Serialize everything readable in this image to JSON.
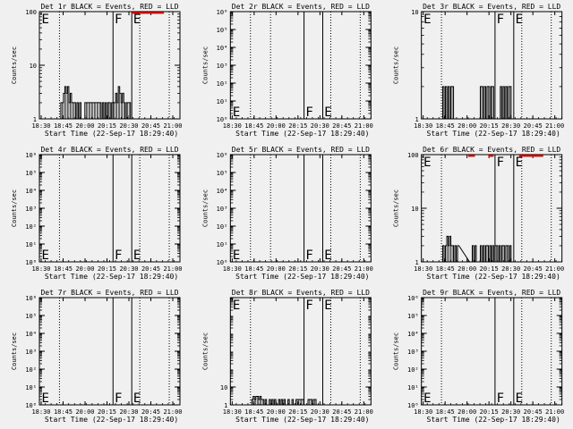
{
  "chart_data": [
    {
      "type": "line",
      "title": "Det 1r BLACK = Events, RED = LLD",
      "xlabel": "Start Time (22-Sep-17 18:29:40)",
      "ylabel": "Counts/sec",
      "x_ticks": [
        "18:30",
        "18:45",
        "20:00",
        "20:15",
        "20:30",
        "20:45",
        "21:00"
      ],
      "xlim": [
        0,
        105
      ],
      "yscale": "log",
      "ylim": [
        1,
        100
      ],
      "y_ticks": [
        "1",
        "10",
        "100"
      ],
      "dotted_lines_x": [
        15,
        75,
        97
      ],
      "solid_lines_x": [
        55,
        69
      ],
      "markers": [
        {
          "label": "E",
          "x": 1,
          "pos": "top"
        },
        {
          "label": "F",
          "x": 55.5,
          "pos": "top"
        },
        {
          "label": "E",
          "x": 69.5,
          "pos": "top"
        }
      ],
      "series": [
        {
          "name": "Events",
          "color": "#000000",
          "x": [
            15,
            16,
            17,
            18,
            19,
            20,
            21,
            22,
            23,
            24,
            25,
            26,
            27,
            28,
            29,
            30,
            31,
            32,
            33,
            34,
            35,
            36,
            37,
            38,
            39,
            40,
            41,
            42,
            43,
            44,
            45,
            46,
            47,
            48,
            49,
            50,
            51,
            52,
            53,
            54,
            55,
            56,
            57,
            58,
            59,
            60,
            61,
            62,
            63,
            64,
            65,
            66,
            67,
            68
          ],
          "y": [
            1,
            2,
            2,
            3,
            4,
            3,
            4,
            2,
            3,
            2,
            2,
            2,
            1,
            2,
            1,
            2,
            1,
            1,
            1,
            2,
            2,
            2,
            2,
            2,
            2,
            2,
            2,
            2,
            2,
            2,
            2,
            1,
            2,
            1,
            2,
            1,
            2,
            2,
            1,
            2,
            2,
            2,
            3,
            2,
            4,
            3,
            2,
            3,
            2,
            1,
            2,
            2,
            2,
            1
          ]
        },
        {
          "name": "LLD",
          "color": "#ff0000",
          "x": [
            69,
            70,
            71,
            72,
            73,
            74,
            75,
            76,
            77,
            78,
            79,
            80,
            81,
            82,
            83,
            84,
            85,
            86,
            87,
            88,
            89,
            90,
            91,
            92
          ],
          "y": [
            100,
            100,
            100,
            100,
            100,
            100,
            100,
            100,
            100,
            100,
            100,
            100,
            100,
            100,
            100,
            100,
            100,
            100,
            100,
            100,
            100,
            100,
            100,
            100
          ]
        }
      ]
    },
    {
      "type": "line",
      "title": "Det 2r BLACK = Events, RED = LLD",
      "xlabel": "Start Time (22-Sep-17 18:29:40)",
      "ylabel": "Counts/sec",
      "x_ticks": [
        "18:30",
        "18:45",
        "20:00",
        "20:15",
        "20:30",
        "20:45",
        "21:00"
      ],
      "xlim": [
        0,
        105
      ],
      "yscale": "log",
      "ylim": [
        1,
        1000000
      ],
      "y_ticks": [
        "10⁰",
        "10¹",
        "10²",
        "10³",
        "10⁴",
        "10⁵",
        "10⁶"
      ],
      "dotted_lines_x": [
        15,
        30,
        75,
        97
      ],
      "solid_lines_x": [
        55,
        69
      ],
      "markers": [
        {
          "label": "E",
          "x": 1,
          "pos": "bottom"
        },
        {
          "label": "F",
          "x": 55.5,
          "pos": "bottom"
        },
        {
          "label": "E",
          "x": 69.5,
          "pos": "bottom"
        }
      ],
      "series": []
    },
    {
      "type": "line",
      "title": "Det 3r BLACK = Events, RED = LLD",
      "xlabel": "Start Time (22-Sep-17 18:29:40)",
      "ylabel": "Counts/sec",
      "x_ticks": [
        "18:30",
        "18:45",
        "20:00",
        "20:15",
        "20:30",
        "20:45",
        "21:00"
      ],
      "xlim": [
        0,
        105
      ],
      "yscale": "log",
      "ylim": [
        1,
        10
      ],
      "y_ticks": [
        "1",
        "10"
      ],
      "dotted_lines_x": [
        15,
        75,
        97
      ],
      "solid_lines_x": [
        55,
        69
      ],
      "markers": [
        {
          "label": "E",
          "x": 1,
          "pos": "top"
        },
        {
          "label": "F",
          "x": 55.5,
          "pos": "top"
        },
        {
          "label": "E",
          "x": 69.5,
          "pos": "top"
        }
      ],
      "series": [
        {
          "name": "Events",
          "color": "#000000",
          "x": [
            15,
            16,
            17,
            18,
            19,
            20,
            21,
            22,
            23,
            24,
            43,
            44,
            45,
            46,
            47,
            48,
            49,
            50,
            51,
            52,
            53,
            54,
            58,
            59,
            60,
            61,
            62,
            63,
            64,
            65,
            66,
            67,
            68
          ],
          "y": [
            1,
            2,
            1,
            2,
            1,
            2,
            1,
            2,
            2,
            1,
            1,
            2,
            2,
            1,
            2,
            1,
            2,
            2,
            1,
            2,
            2,
            1,
            1,
            2,
            1,
            2,
            1,
            2,
            1,
            2,
            2,
            1,
            1
          ]
        }
      ]
    },
    {
      "type": "line",
      "title": "Det 4r BLACK = Events, RED = LLD",
      "xlabel": "Start Time (22-Sep-17 18:29:40)",
      "ylabel": "Counts/sec",
      "x_ticks": [
        "18:30",
        "18:45",
        "20:00",
        "20:15",
        "20:30",
        "20:45",
        "21:00"
      ],
      "xlim": [
        0,
        105
      ],
      "yscale": "log",
      "ylim": [
        1,
        1000000
      ],
      "y_ticks": [
        "10⁰",
        "10¹",
        "10²",
        "10³",
        "10⁴",
        "10⁵",
        "10⁶"
      ],
      "dotted_lines_x": [
        15,
        75,
        97
      ],
      "solid_lines_x": [
        55,
        69
      ],
      "markers": [
        {
          "label": "E",
          "x": 1,
          "pos": "bottom"
        },
        {
          "label": "F",
          "x": 55.5,
          "pos": "bottom"
        },
        {
          "label": "E",
          "x": 69.5,
          "pos": "bottom"
        }
      ],
      "series": []
    },
    {
      "type": "line",
      "title": "Det 5r BLACK = Events, RED = LLD",
      "xlabel": "Start Time (22-Sep-17 18:29:40)",
      "ylabel": "Counts/sec",
      "x_ticks": [
        "18:30",
        "18:45",
        "20:00",
        "20:15",
        "20:30",
        "20:45",
        "21:00"
      ],
      "xlim": [
        0,
        105
      ],
      "yscale": "log",
      "ylim": [
        1,
        1000000
      ],
      "y_ticks": [
        "10⁰",
        "10¹",
        "10²",
        "10³",
        "10⁴",
        "10⁵",
        "10⁶"
      ],
      "dotted_lines_x": [
        15,
        30,
        75,
        97
      ],
      "solid_lines_x": [
        55,
        69
      ],
      "markers": [
        {
          "label": "E",
          "x": 1,
          "pos": "bottom"
        },
        {
          "label": "F",
          "x": 55.5,
          "pos": "bottom"
        },
        {
          "label": "E",
          "x": 69.5,
          "pos": "bottom"
        }
      ],
      "series": []
    },
    {
      "type": "line",
      "title": "Det 6r BLACK = Events, RED = LLD",
      "xlabel": "Start Time (22-Sep-17 18:29:40)",
      "ylabel": "Counts/sec",
      "x_ticks": [
        "18:30",
        "18:45",
        "20:00",
        "20:15",
        "20:30",
        "20:45",
        "21:00"
      ],
      "xlim": [
        0,
        105
      ],
      "yscale": "log",
      "ylim": [
        1,
        100
      ],
      "y_ticks": [
        "1",
        "10",
        "100"
      ],
      "dotted_lines_x": [
        15,
        75,
        97
      ],
      "solid_lines_x": [
        55,
        69
      ],
      "markers": [
        {
          "label": "E",
          "x": 1,
          "pos": "top"
        },
        {
          "label": "F",
          "x": 55.5,
          "pos": "top"
        },
        {
          "label": "E",
          "x": 69.5,
          "pos": "top"
        }
      ],
      "series": [
        {
          "name": "Events",
          "color": "#000000",
          "x": [
            15,
            16,
            17,
            18,
            19,
            20,
            21,
            22,
            23,
            24,
            25,
            26,
            27,
            36,
            37,
            38,
            39,
            40,
            41,
            42,
            43,
            44,
            45,
            46,
            47,
            48,
            49,
            50,
            51,
            52,
            53,
            54,
            55,
            56,
            57,
            58,
            59,
            60,
            61,
            62,
            63,
            64,
            65,
            66,
            67,
            68
          ],
          "y": [
            1,
            2,
            1,
            2,
            3,
            2,
            3,
            2,
            2,
            1,
            2,
            1,
            2,
            1,
            1,
            2,
            1,
            2,
            1,
            1,
            1,
            2,
            1,
            2,
            1,
            2,
            2,
            1,
            2,
            1,
            2,
            1,
            2,
            2,
            1,
            2,
            1,
            2,
            2,
            1,
            2,
            2,
            1,
            2,
            1,
            1
          ]
        },
        {
          "name": "LLD",
          "color": "#ff0000",
          "x": [
            35,
            36,
            37,
            38,
            39,
            50,
            51,
            52,
            53,
            73,
            74,
            75,
            76,
            77,
            78,
            79,
            80,
            81,
            82,
            83,
            84,
            85,
            86,
            87,
            88,
            89,
            90
          ],
          "y": [
            100,
            100,
            100,
            100,
            100,
            100,
            100,
            100,
            100,
            100,
            100,
            100,
            100,
            100,
            100,
            100,
            100,
            100,
            100,
            100,
            100,
            100,
            100,
            100,
            100,
            100,
            100
          ]
        }
      ]
    },
    {
      "type": "line",
      "title": "Det 7r BLACK = Events, RED = LLD",
      "xlabel": "Start Time (22-Sep-17 18:29:40)",
      "ylabel": "Counts/sec",
      "x_ticks": [
        "18:30",
        "18:45",
        "20:00",
        "20:15",
        "20:30",
        "20:45",
        "21:00"
      ],
      "xlim": [
        0,
        105
      ],
      "yscale": "log",
      "ylim": [
        1,
        1000000
      ],
      "y_ticks": [
        "10⁰",
        "10¹",
        "10²",
        "10³",
        "10⁴",
        "10⁵",
        "10⁶"
      ],
      "dotted_lines_x": [
        15,
        75,
        97
      ],
      "solid_lines_x": [
        55,
        69
      ],
      "markers": [
        {
          "label": "E",
          "x": 1,
          "pos": "bottom"
        },
        {
          "label": "F",
          "x": 55.5,
          "pos": "bottom"
        },
        {
          "label": "E",
          "x": 69.5,
          "pos": "bottom"
        }
      ],
      "series": []
    },
    {
      "type": "line",
      "title": "Det 8r BLACK = Events, RED = LLD",
      "xlabel": "Start Time (22-Sep-17 18:29:40)",
      "ylabel": "Counts/sec",
      "x_ticks": [
        "18:30",
        "18:45",
        "20:00",
        "20:15",
        "20:30",
        "20:45",
        "21:00"
      ],
      "xlim": [
        0,
        105
      ],
      "yscale": "log",
      "ylim": [
        1,
        1000000
      ],
      "y_ticks": [
        "1",
        "10"
      ],
      "dotted_lines_x": [
        15,
        75,
        97
      ],
      "solid_lines_x": [
        55,
        69
      ],
      "markers": [
        {
          "label": "E",
          "x": 1,
          "pos": "top"
        },
        {
          "label": "F",
          "x": 55.5,
          "pos": "top"
        },
        {
          "label": "E",
          "x": 69.5,
          "pos": "top"
        }
      ],
      "series": [
        {
          "name": "Events",
          "color": "#000000",
          "x": [
            15,
            16,
            17,
            18,
            19,
            20,
            21,
            22,
            23,
            24,
            25,
            26,
            27,
            28,
            29,
            30,
            31,
            32,
            33,
            34,
            35,
            36,
            37,
            38,
            39,
            40,
            41,
            42,
            43,
            44,
            45,
            46,
            47,
            48,
            49,
            50,
            51,
            52,
            53,
            54,
            55,
            56,
            57,
            58,
            59,
            60,
            61,
            62,
            63,
            64,
            65,
            66,
            67,
            68
          ],
          "y": [
            1,
            2,
            3,
            2,
            3,
            3,
            2,
            3,
            2,
            2,
            1,
            2,
            1,
            1,
            2,
            1,
            2,
            1,
            2,
            1,
            1,
            2,
            1,
            2,
            1,
            2,
            1,
            1,
            2,
            1,
            1,
            2,
            1,
            1,
            2,
            2,
            2,
            2,
            2,
            2,
            1,
            1,
            1,
            2,
            2,
            2,
            1,
            2,
            2,
            1,
            1,
            1,
            1,
            1
          ]
        }
      ]
    },
    {
      "type": "line",
      "title": "Det 9r BLACK = Events, RED = LLD",
      "xlabel": "Start Time (22-Sep-17 18:29:40)",
      "ylabel": "Counts/sec",
      "x_ticks": [
        "18:30",
        "18:45",
        "20:00",
        "20:15",
        "20:30",
        "20:45",
        "21:00"
      ],
      "xlim": [
        0,
        105
      ],
      "yscale": "log",
      "ylim": [
        1,
        1000000
      ],
      "y_ticks": [
        "10⁰",
        "10¹",
        "10²",
        "10³",
        "10⁴",
        "10⁵",
        "10⁶"
      ],
      "dotted_lines_x": [
        15,
        75,
        97
      ],
      "solid_lines_x": [
        55,
        69
      ],
      "markers": [
        {
          "label": "E",
          "x": 1,
          "pos": "bottom"
        },
        {
          "label": "F",
          "x": 55.5,
          "pos": "bottom"
        },
        {
          "label": "E",
          "x": 69.5,
          "pos": "bottom"
        }
      ],
      "series": []
    }
  ]
}
